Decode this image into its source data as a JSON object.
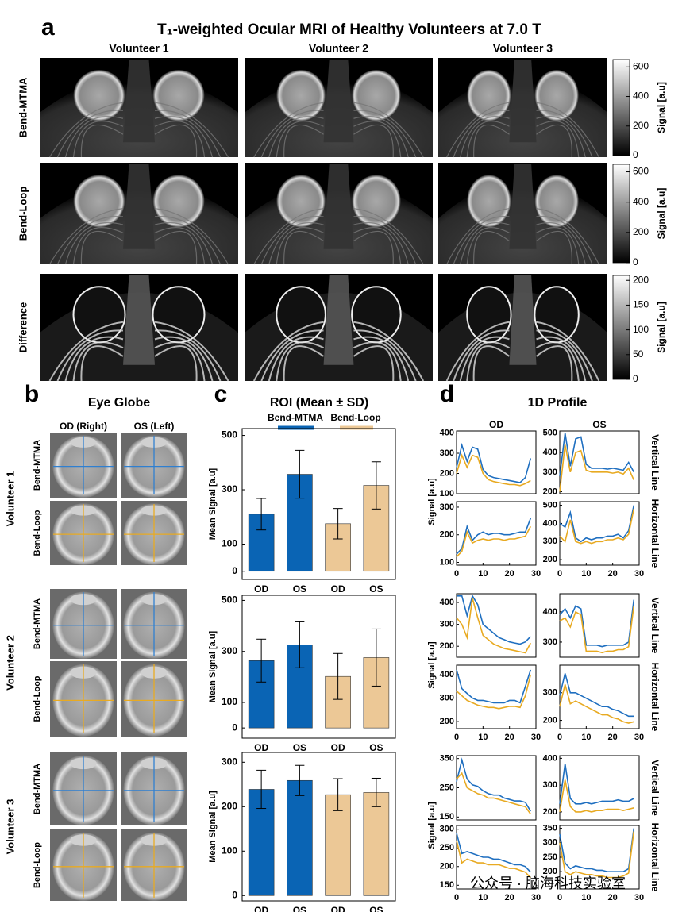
{
  "panel_a": {
    "letter": "a",
    "title": "T₁-weighted Ocular MRI of Healthy Volunteers at 7.0 T",
    "columns": [
      "Volunteer 1",
      "Volunteer 2",
      "Volunteer 3"
    ],
    "rows": [
      {
        "label": "Bend-MTMA",
        "colorbar": {
          "label": "Signal [a.u]",
          "ylim": [
            0,
            650
          ],
          "yticks": [
            0,
            200,
            400,
            600
          ]
        }
      },
      {
        "label": "Bend-Loop",
        "colorbar": {
          "label": "Signal [a.u]",
          "ylim": [
            0,
            650
          ],
          "yticks": [
            0,
            200,
            400,
            600
          ]
        }
      },
      {
        "label": "Difference",
        "colorbar": {
          "label": "Signal [a.u]",
          "ylim": [
            0,
            210
          ],
          "yticks": [
            0,
            50,
            100,
            150,
            200
          ]
        }
      }
    ]
  },
  "panel_b": {
    "letter": "b",
    "title": "Eye Globe",
    "columns": [
      "OD (Right)",
      "OS (Left)"
    ],
    "volunteers": [
      "Volunteer 1",
      "Volunteer 2",
      "Volunteer 3"
    ],
    "rows": [
      "Bend-MTMA",
      "Bend-Loop"
    ]
  },
  "panel_c": {
    "letter": "c",
    "title": "ROI (Mean ± SD)",
    "legend": [
      {
        "name": "Bend-MTMA",
        "color": "#0a64b4"
      },
      {
        "name": "Bend-Loop",
        "color": "#ecc896"
      }
    ]
  },
  "panel_d": {
    "letter": "d",
    "title": "1D Profile",
    "columns": [
      "OD",
      "OS"
    ],
    "row_labels": [
      "Vertical Line",
      "Horizontal Line"
    ],
    "ylabel": "Signal [a.u]"
  },
  "watermark": "公众号 · 脑海科技实验室",
  "chart_data": [
    {
      "type": "bar",
      "ylabel": "Mean Signal [a.u]",
      "categories": [
        "OD",
        "OS",
        "OD",
        "OS"
      ],
      "values": [
        210,
        357,
        175,
        316
      ],
      "errors": [
        58,
        88,
        56,
        87
      ],
      "colors": [
        "#0a64b4",
        "#0a64b4",
        "#ecc896",
        "#ecc896"
      ],
      "ylim": [
        -30,
        525
      ],
      "yticks": [
        0,
        100,
        300,
        500
      ]
    },
    {
      "type": "bar",
      "ylabel": "Mean Signal [a.u]",
      "categories": [
        "OD",
        "OS",
        "OD",
        "OS"
      ],
      "values": [
        264,
        326,
        202,
        276
      ],
      "errors": [
        84,
        90,
        90,
        112
      ],
      "colors": [
        "#0a64b4",
        "#0a64b4",
        "#ecc896",
        "#ecc896"
      ],
      "ylim": [
        -40,
        520
      ],
      "yticks": [
        0,
        100,
        300,
        500
      ]
    },
    {
      "type": "bar",
      "ylabel": "Mean Signal [a.u]",
      "categories": [
        "OD",
        "OS",
        "OD",
        "OS"
      ],
      "values": [
        239,
        259,
        227,
        232
      ],
      "errors": [
        43,
        34,
        36,
        32
      ],
      "colors": [
        "#0a64b4",
        "#0a64b4",
        "#ecc896",
        "#ecc896"
      ],
      "ylim": [
        -12,
        322
      ],
      "yticks": [
        0,
        100,
        200,
        300
      ]
    },
    {
      "type": "line",
      "x": [
        0,
        2,
        4,
        6,
        8,
        10,
        12,
        14,
        16,
        18,
        20,
        22,
        24,
        26,
        28
      ],
      "xlim": [
        0,
        30
      ],
      "ylim": [
        100,
        410
      ],
      "yticks": [
        100,
        200,
        300,
        400
      ],
      "series": [
        {
          "color": "#1f6fc0",
          "values": [
            230,
            340,
            260,
            330,
            320,
            220,
            190,
            180,
            175,
            170,
            165,
            160,
            155,
            180,
            275
          ]
        },
        {
          "color": "#e8aa22",
          "values": [
            200,
            290,
            230,
            290,
            280,
            200,
            170,
            160,
            155,
            150,
            145,
            145,
            140,
            150,
            165
          ]
        }
      ]
    },
    {
      "type": "line",
      "x": [
        0,
        2,
        4,
        6,
        8,
        10,
        12,
        14,
        16,
        18,
        20,
        22,
        24,
        26,
        28
      ],
      "xlim": [
        0,
        30
      ],
      "ylim": [
        190,
        510
      ],
      "yticks": [
        200,
        300,
        400,
        500
      ],
      "series": [
        {
          "color": "#1f6fc0",
          "values": [
            280,
            500,
            330,
            470,
            480,
            340,
            320,
            320,
            320,
            315,
            320,
            315,
            310,
            350,
            300
          ]
        },
        {
          "color": "#e8aa22",
          "values": [
            200,
            440,
            300,
            400,
            410,
            310,
            300,
            300,
            300,
            300,
            295,
            300,
            290,
            320,
            260
          ]
        }
      ]
    },
    {
      "type": "line",
      "x": [
        0,
        2,
        4,
        6,
        8,
        10,
        12,
        14,
        16,
        18,
        20,
        22,
        24,
        26,
        28
      ],
      "xlim": [
        0,
        30
      ],
      "xticks": [
        0,
        10,
        20,
        30
      ],
      "ylim": [
        90,
        320
      ],
      "yticks": [
        100,
        200,
        300
      ],
      "series": [
        {
          "color": "#1f6fc0",
          "values": [
            130,
            150,
            230,
            180,
            200,
            210,
            200,
            205,
            205,
            200,
            200,
            205,
            210,
            210,
            260
          ]
        },
        {
          "color": "#e8aa22",
          "values": [
            120,
            140,
            210,
            170,
            180,
            185,
            180,
            185,
            185,
            180,
            185,
            185,
            190,
            195,
            230
          ]
        }
      ]
    },
    {
      "type": "line",
      "x": [
        0,
        2,
        4,
        6,
        8,
        10,
        12,
        14,
        16,
        18,
        20,
        22,
        24,
        26,
        28
      ],
      "xlim": [
        0,
        30
      ],
      "xticks": [
        0,
        10,
        20,
        30
      ],
      "ylim": [
        170,
        520
      ],
      "yticks": [
        200,
        300,
        400,
        500
      ],
      "series": [
        {
          "color": "#1f6fc0",
          "values": [
            400,
            380,
            460,
            320,
            300,
            320,
            310,
            320,
            320,
            330,
            330,
            340,
            320,
            360,
            500
          ]
        },
        {
          "color": "#e8aa22",
          "values": [
            330,
            300,
            420,
            300,
            290,
            300,
            290,
            300,
            300,
            310,
            310,
            320,
            310,
            340,
            480
          ]
        }
      ]
    },
    {
      "type": "line",
      "x": [
        0,
        2,
        4,
        6,
        8,
        10,
        12,
        14,
        16,
        18,
        20,
        22,
        24,
        26,
        28
      ],
      "xlim": [
        0,
        30
      ],
      "ylim": [
        150,
        440
      ],
      "yticks": [
        200,
        300,
        400
      ],
      "series": [
        {
          "color": "#1f6fc0",
          "values": [
            430,
            430,
            340,
            430,
            390,
            300,
            280,
            260,
            240,
            230,
            220,
            215,
            210,
            220,
            245
          ]
        },
        {
          "color": "#e8aa22",
          "values": [
            330,
            300,
            240,
            420,
            330,
            250,
            230,
            210,
            200,
            190,
            185,
            180,
            175,
            170,
            215
          ]
        }
      ]
    },
    {
      "type": "line",
      "x": [
        0,
        2,
        4,
        6,
        8,
        10,
        12,
        14,
        16,
        18,
        20,
        22,
        24,
        26,
        28
      ],
      "xlim": [
        0,
        30
      ],
      "ylim": [
        250,
        460
      ],
      "yticks": [
        300,
        400
      ],
      "series": [
        {
          "color": "#1f6fc0",
          "values": [
            390,
            410,
            380,
            420,
            410,
            290,
            290,
            290,
            285,
            290,
            290,
            290,
            290,
            300,
            440
          ]
        },
        {
          "color": "#e8aa22",
          "values": [
            370,
            380,
            350,
            400,
            390,
            270,
            270,
            270,
            265,
            270,
            270,
            275,
            275,
            285,
            420
          ]
        }
      ]
    },
    {
      "type": "line",
      "x": [
        0,
        2,
        4,
        6,
        8,
        10,
        12,
        14,
        16,
        18,
        20,
        22,
        24,
        26,
        28
      ],
      "xlim": [
        0,
        30
      ],
      "xticks": [
        0,
        10,
        20,
        30
      ],
      "ylim": [
        170,
        440
      ],
      "yticks": [
        200,
        300,
        400
      ],
      "series": [
        {
          "color": "#1f6fc0",
          "values": [
            420,
            340,
            320,
            300,
            290,
            290,
            285,
            280,
            280,
            280,
            290,
            290,
            280,
            350,
            420
          ]
        },
        {
          "color": "#e8aa22",
          "values": [
            330,
            310,
            290,
            280,
            270,
            265,
            260,
            260,
            255,
            260,
            265,
            265,
            260,
            310,
            400
          ]
        }
      ]
    },
    {
      "type": "line",
      "x": [
        0,
        2,
        4,
        6,
        8,
        10,
        12,
        14,
        16,
        18,
        20,
        22,
        24,
        26,
        28
      ],
      "xlim": [
        0,
        30
      ],
      "xticks": [
        0,
        10,
        20,
        30
      ],
      "ylim": [
        170,
        400
      ],
      "yticks": [
        200,
        300
      ],
      "series": [
        {
          "color": "#1f6fc0",
          "values": [
            290,
            370,
            300,
            300,
            290,
            280,
            270,
            260,
            250,
            250,
            240,
            235,
            225,
            215,
            215
          ]
        },
        {
          "color": "#e8aa22",
          "values": [
            250,
            330,
            260,
            270,
            260,
            250,
            240,
            230,
            220,
            220,
            210,
            205,
            195,
            190,
            195
          ]
        }
      ]
    },
    {
      "type": "line",
      "x": [
        0,
        2,
        4,
        6,
        8,
        10,
        12,
        14,
        16,
        18,
        20,
        22,
        24,
        26,
        28
      ],
      "xlim": [
        0,
        30
      ],
      "ylim": [
        140,
        360
      ],
      "yticks": [
        150,
        250,
        350
      ],
      "series": [
        {
          "color": "#1f6fc0",
          "values": [
            270,
            345,
            280,
            260,
            255,
            240,
            230,
            225,
            225,
            215,
            210,
            205,
            205,
            200,
            170
          ]
        },
        {
          "color": "#e8aa22",
          "values": [
            280,
            300,
            250,
            240,
            230,
            225,
            215,
            215,
            210,
            205,
            200,
            195,
            190,
            185,
            160
          ]
        }
      ]
    },
    {
      "type": "line",
      "x": [
        0,
        2,
        4,
        6,
        8,
        10,
        12,
        14,
        16,
        18,
        20,
        22,
        24,
        26,
        28
      ],
      "xlim": [
        0,
        30
      ],
      "ylim": [
        170,
        410
      ],
      "yticks": [
        200,
        300,
        400
      ],
      "series": [
        {
          "color": "#1f6fc0",
          "values": [
            230,
            380,
            250,
            230,
            230,
            235,
            230,
            235,
            240,
            240,
            240,
            245,
            240,
            240,
            250
          ]
        },
        {
          "color": "#e8aa22",
          "values": [
            200,
            320,
            220,
            200,
            200,
            205,
            200,
            205,
            205,
            210,
            210,
            210,
            205,
            210,
            215
          ]
        }
      ]
    },
    {
      "type": "line",
      "x": [
        0,
        2,
        4,
        6,
        8,
        10,
        12,
        14,
        16,
        18,
        20,
        22,
        24,
        26,
        28
      ],
      "xlim": [
        0,
        30
      ],
      "xticks": [
        0,
        10,
        20,
        30
      ],
      "ylim": [
        140,
        310
      ],
      "yticks": [
        150,
        200,
        250,
        300
      ],
      "series": [
        {
          "color": "#1f6fc0",
          "values": [
            290,
            235,
            240,
            235,
            230,
            225,
            225,
            220,
            220,
            215,
            210,
            205,
            205,
            200,
            185
          ]
        },
        {
          "color": "#e8aa22",
          "values": [
            270,
            210,
            220,
            215,
            210,
            210,
            205,
            205,
            205,
            200,
            195,
            195,
            190,
            185,
            170
          ]
        }
      ]
    },
    {
      "type": "line",
      "x": [
        0,
        2,
        4,
        6,
        8,
        10,
        12,
        14,
        16,
        18,
        20,
        22,
        24,
        26,
        28
      ],
      "xlim": [
        0,
        30
      ],
      "xticks": [
        0,
        10,
        20,
        30
      ],
      "ylim": [
        140,
        360
      ],
      "yticks": [
        200,
        250,
        300,
        350
      ],
      "series": [
        {
          "color": "#1f6fc0",
          "values": [
            330,
            230,
            210,
            220,
            215,
            210,
            210,
            205,
            205,
            200,
            200,
            200,
            200,
            210,
            350
          ]
        },
        {
          "color": "#e8aa22",
          "values": [
            300,
            200,
            190,
            200,
            195,
            190,
            190,
            185,
            185,
            180,
            180,
            180,
            185,
            195,
            340
          ]
        }
      ]
    }
  ]
}
